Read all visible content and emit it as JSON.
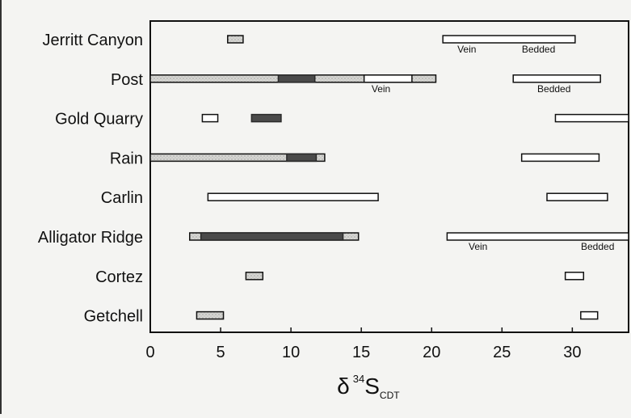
{
  "chart_data": {
    "type": "range-bar",
    "categories": [
      "Jerritt Canyon",
      "Post",
      "Gold Quarry",
      "Rain",
      "Carlin",
      "Alligator Ridge",
      "Cortez",
      "Getchell"
    ],
    "xlim": [
      0,
      34
    ],
    "xticks": [
      0,
      5,
      10,
      15,
      20,
      25,
      30
    ],
    "xlabel_parts": {
      "delta": "δ",
      "superscript": "34",
      "main": "S",
      "subscript": "CDT"
    },
    "grid": false,
    "fill_styles": {
      "open": "#ffffff",
      "stippled": "#cfcfcc",
      "dark": "#4a4a4a"
    },
    "bars": [
      {
        "category": "Jerritt Canyon",
        "style": "stippled",
        "range": [
          5.5,
          6.6
        ]
      },
      {
        "category": "Jerritt Canyon",
        "style": "open",
        "range": [
          20.8,
          30.2
        ]
      },
      {
        "category": "Post",
        "style": "stippled",
        "range": [
          0,
          20.3
        ]
      },
      {
        "category": "Post",
        "style": "dark",
        "range": [
          9.1,
          11.7
        ]
      },
      {
        "category": "Post",
        "style": "open",
        "range": [
          15.2,
          18.6
        ]
      },
      {
        "category": "Post",
        "style": "open",
        "range": [
          25.8,
          32.0
        ]
      },
      {
        "category": "Gold Quarry",
        "style": "open",
        "range": [
          3.7,
          4.8
        ]
      },
      {
        "category": "Gold Quarry",
        "style": "dark",
        "range": [
          7.2,
          9.3
        ]
      },
      {
        "category": "Gold Quarry",
        "style": "open",
        "range": [
          28.8,
          34
        ]
      },
      {
        "category": "Rain",
        "style": "stippled",
        "range": [
          0,
          12.4
        ]
      },
      {
        "category": "Rain",
        "style": "dark",
        "range": [
          9.7,
          11.8
        ]
      },
      {
        "category": "Rain",
        "style": "open",
        "range": [
          26.4,
          31.9
        ]
      },
      {
        "category": "Carlin",
        "style": "open",
        "range": [
          4.1,
          16.2
        ]
      },
      {
        "category": "Carlin",
        "style": "open",
        "range": [
          28.2,
          32.5
        ]
      },
      {
        "category": "Alligator Ridge",
        "style": "stippled",
        "range": [
          2.8,
          14.8
        ]
      },
      {
        "category": "Alligator Ridge",
        "style": "dark",
        "range": [
          3.6,
          13.7
        ]
      },
      {
        "category": "Alligator Ridge",
        "style": "open",
        "range": [
          21.1,
          34
        ]
      },
      {
        "category": "Cortez",
        "style": "stippled",
        "range": [
          6.8,
          8.0
        ]
      },
      {
        "category": "Cortez",
        "style": "open",
        "range": [
          29.5,
          30.8
        ]
      },
      {
        "category": "Getchell",
        "style": "stippled",
        "range": [
          3.3,
          5.2
        ]
      },
      {
        "category": "Getchell",
        "style": "open",
        "range": [
          30.6,
          31.8
        ]
      }
    ],
    "annotations": [
      {
        "text": "Vein",
        "category": "Jerritt Canyon",
        "x": 22.5
      },
      {
        "text": "Bedded",
        "category": "Jerritt Canyon",
        "x": 27.6
      },
      {
        "text": "Vein",
        "category": "Post",
        "x": 16.4
      },
      {
        "text": "Bedded",
        "category": "Post",
        "x": 28.7
      },
      {
        "text": "Vein",
        "category": "Alligator Ridge",
        "x": 23.3
      },
      {
        "text": "Bedded",
        "category": "Alligator Ridge",
        "x": 31.8
      }
    ]
  }
}
